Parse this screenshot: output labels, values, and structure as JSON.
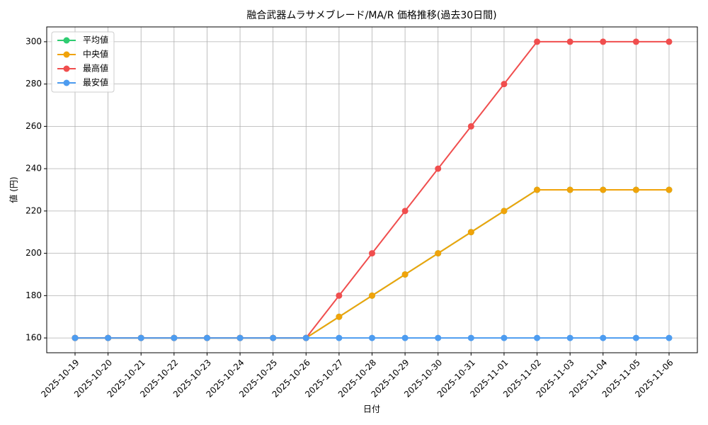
{
  "chart_data": {
    "type": "line",
    "title": "融合武器ムラサメブレード/MA/R 価格推移(過去30日間)",
    "x_label": "日付",
    "y_label": "値 (円)",
    "categories": [
      "2025-10-19",
      "2025-10-20",
      "2025-10-21",
      "2025-10-22",
      "2025-10-23",
      "2025-10-24",
      "2025-10-25",
      "2025-10-26",
      "2025-10-27",
      "2025-10-28",
      "2025-10-29",
      "2025-10-30",
      "2025-10-31",
      "2025-11-01",
      "2025-11-02",
      "2025-11-03",
      "2025-11-04",
      "2025-11-05",
      "2025-11-06"
    ],
    "series": [
      {
        "name": "平均値",
        "color": "#2ecc71",
        "values": [
          160,
          160,
          160,
          160,
          160,
          160,
          160,
          160,
          170,
          180,
          190,
          200,
          210,
          220,
          230,
          230,
          230,
          230,
          230
        ]
      },
      {
        "name": "中央値",
        "color": "#f0a30a",
        "values": [
          160,
          160,
          160,
          160,
          160,
          160,
          160,
          160,
          170,
          180,
          190,
          200,
          210,
          220,
          230,
          230,
          230,
          230,
          230
        ]
      },
      {
        "name": "最高値",
        "color": "#f04e4e",
        "values": [
          160,
          160,
          160,
          160,
          160,
          160,
          160,
          160,
          180,
          200,
          220,
          240,
          260,
          280,
          300,
          300,
          300,
          300,
          300
        ]
      },
      {
        "name": "最安値",
        "color": "#4d9cf0",
        "values": [
          160,
          160,
          160,
          160,
          160,
          160,
          160,
          160,
          160,
          160,
          160,
          160,
          160,
          160,
          160,
          160,
          160,
          160,
          160
        ]
      }
    ],
    "ylim": [
      153,
      307
    ],
    "yticks": [
      160,
      180,
      200,
      220,
      240,
      260,
      280,
      300
    ],
    "grid": true,
    "legend": "upper left"
  }
}
